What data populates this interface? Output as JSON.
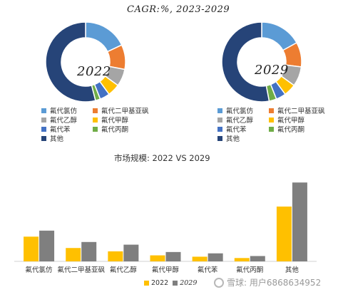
{
  "header": {
    "title": "CAGR:",
    "period": "%, 2023-2029"
  },
  "chart_data": [
    {
      "type": "pie",
      "title": "2022",
      "categories": [
        "氟代氯仿",
        "氟代二甲基亚砜",
        "氟代乙醇",
        "氟代甲醇",
        "氟代苯",
        "氟代丙酮",
        "其他"
      ],
      "values": [
        18,
        10,
        7,
        5,
        4,
        2,
        54
      ]
    },
    {
      "type": "pie",
      "title": "2029",
      "categories": [
        "氟代氯仿",
        "氟代二甲基亚砜",
        "氟代乙醇",
        "氟代甲醇",
        "氟代苯",
        "氟代丙酮",
        "其他"
      ],
      "values": [
        17,
        10,
        8,
        5,
        4,
        3,
        53
      ]
    },
    {
      "type": "bar",
      "title": "市场规模: 2022 VS 2029",
      "categories": [
        "氟代氯仿",
        "氟代二甲基亚砜",
        "氟代乙醇",
        "氟代甲醇",
        "氟代苯",
        "氟代丙酮",
        "其他"
      ],
      "series": [
        {
          "name": "2022",
          "values": [
            37,
            20,
            15,
            9,
            7,
            5,
            82
          ]
        },
        {
          "name": "2029",
          "values": [
            46,
            29,
            25,
            14,
            12,
            8,
            118
          ]
        }
      ],
      "ylim": [
        0,
        130
      ]
    }
  ],
  "colors": {
    "slices": [
      "#5b9bd5",
      "#ed7d31",
      "#a5a5a5",
      "#ffc000",
      "#4472c4",
      "#70ad47",
      "#264478"
    ],
    "series": [
      "#ffc000",
      "#7f7f7f"
    ],
    "axis": "#d0d0d0"
  },
  "watermark": {
    "text": "雪球: 用户6868634952",
    "icon": "snowball-logo-icon"
  }
}
